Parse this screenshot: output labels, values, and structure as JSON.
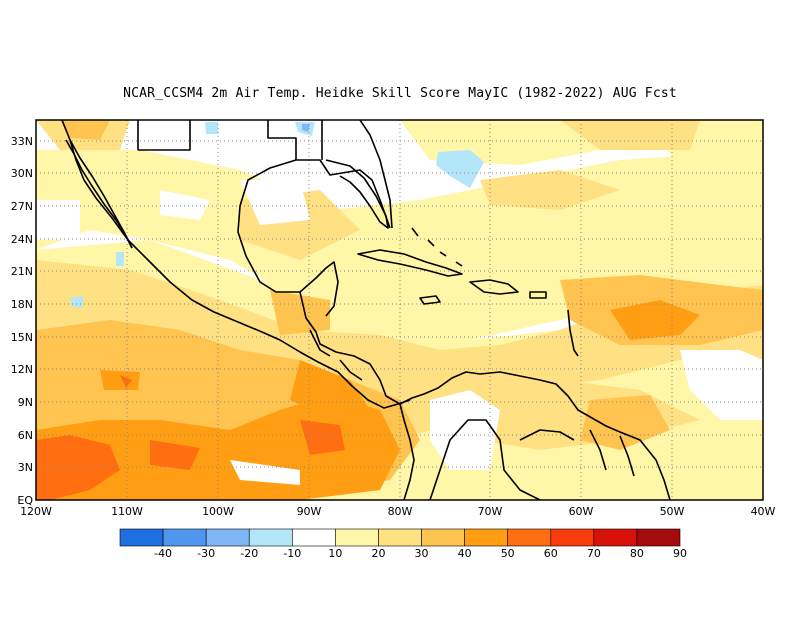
{
  "title": "NCAR_CCSM4  2m Air Temp. Heidke Skill Score MayIC (1982-2022) AUG Fcst",
  "lat_labels": [
    "33N",
    "30N",
    "27N",
    "24N",
    "21N",
    "18N",
    "15N",
    "12N",
    "9N",
    "6N",
    "3N",
    "EQ"
  ],
  "lon_labels": [
    "120W",
    "110W",
    "100W",
    "90W",
    "80W",
    "70W",
    "60W",
    "50W",
    "40W"
  ],
  "colorbar": {
    "labels": [
      "-40",
      "-30",
      "-20",
      "-10",
      "10",
      "20",
      "30",
      "40",
      "50",
      "60",
      "70",
      "80",
      "90"
    ],
    "colors": [
      "#1f6fe0",
      "#4f96ee",
      "#7fb7f6",
      "#b4e6fa",
      "#ffffff",
      "#fff6a8",
      "#ffe083",
      "#ffc34f",
      "#ff9e13",
      "#ff6f12",
      "#f83b0b",
      "#d8120a",
      "#a50b0b"
    ]
  },
  "palette": {
    "neg1": "#b4e6fa",
    "neg2": "#7fb7f6",
    "pos10": "#fff6a8",
    "pos20": "#ffe083",
    "pos30": "#ffc34f",
    "pos40": "#ff9e13",
    "pos50": "#ff6f12",
    "pos60": "#f83b0b"
  }
}
